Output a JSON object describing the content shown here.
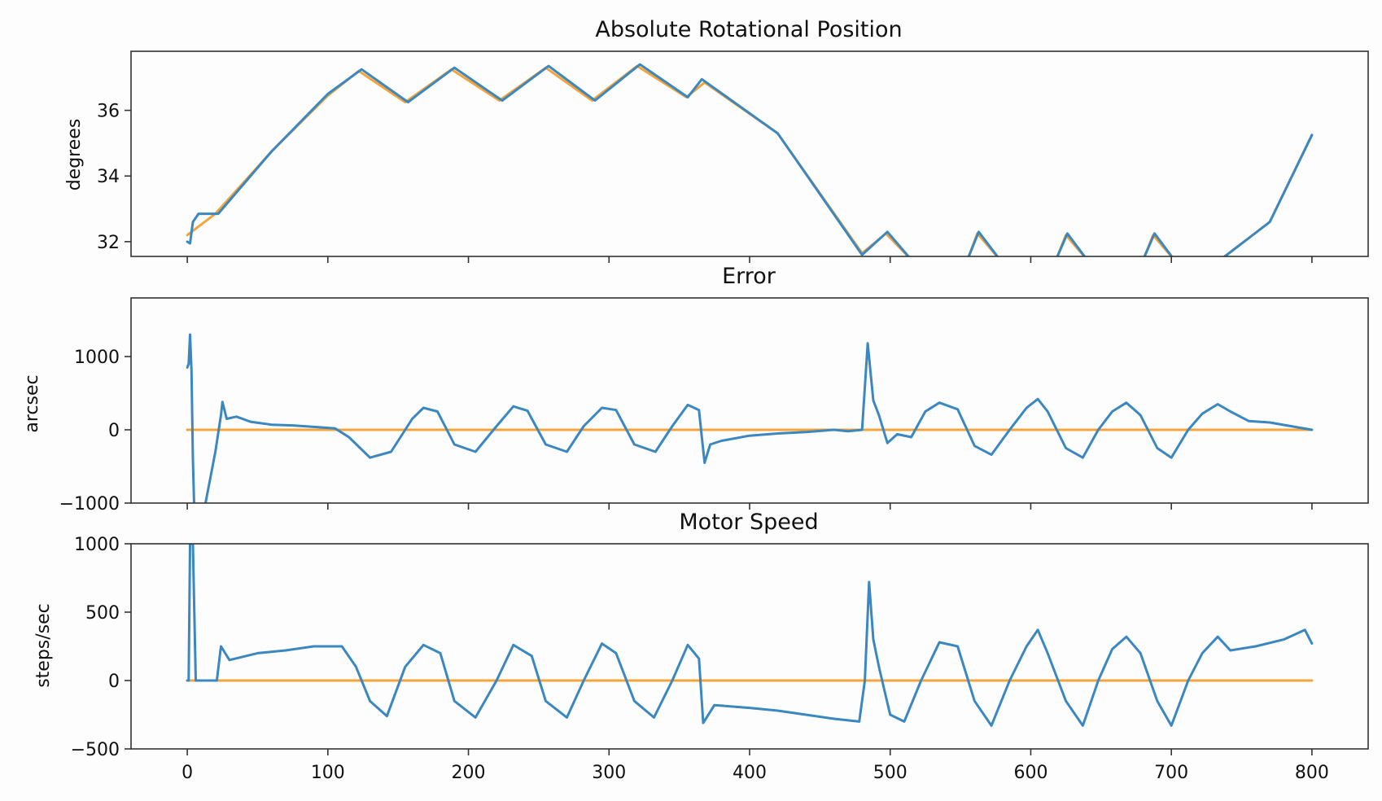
{
  "colors": {
    "measured": "#3b87bf",
    "target": "#f4a43a",
    "frame": "#333333"
  },
  "chart_data": [
    {
      "type": "line",
      "title": "Absolute Rotational Position",
      "xlabel": "",
      "ylabel": "degrees",
      "xlim": [
        -40,
        840
      ],
      "ylim": [
        31.55,
        37.8
      ],
      "yticks": [
        32,
        34,
        36
      ],
      "ytick_labels": [
        "32",
        "34",
        "36"
      ],
      "xticks": [
        0,
        100,
        200,
        300,
        400,
        500,
        600,
        700,
        800
      ],
      "xtick_labels": [],
      "series": [
        {
          "color": "#f4a43a",
          "points": [
            [
              0,
              32.2
            ],
            [
              20,
              32.85
            ],
            [
              60,
              34.75
            ],
            [
              100,
              36.45
            ],
            [
              122,
              37.2
            ],
            [
              155,
              36.25
            ],
            [
              188,
              37.25
            ],
            [
              222,
              36.3
            ],
            [
              255,
              37.3
            ],
            [
              288,
              36.3
            ],
            [
              320,
              37.35
            ],
            [
              355,
              36.4
            ],
            [
              368,
              36.85
            ],
            [
              420,
              35.3
            ],
            [
              480,
              31.65
            ],
            [
              497,
              32.25
            ],
            [
              515,
              31.45
            ],
            [
              555,
              31.45
            ],
            [
              562,
              32.25
            ],
            [
              578,
              31.45
            ],
            [
              618,
              31.45
            ],
            [
              625,
              32.2
            ],
            [
              640,
              31.45
            ],
            [
              680,
              31.45
            ],
            [
              687,
              32.2
            ],
            [
              702,
              31.45
            ],
            [
              735,
              31.45
            ],
            [
              770,
              32.6
            ],
            [
              800,
              35.25
            ]
          ]
        },
        {
          "color": "#3b87bf",
          "points": [
            [
              0,
              32.0
            ],
            [
              2,
              31.95
            ],
            [
              4,
              32.6
            ],
            [
              8,
              32.85
            ],
            [
              22,
              32.85
            ],
            [
              60,
              34.75
            ],
            [
              100,
              36.5
            ],
            [
              124,
              37.25
            ],
            [
              157,
              36.25
            ],
            [
              190,
              37.3
            ],
            [
              224,
              36.3
            ],
            [
              257,
              37.35
            ],
            [
              290,
              36.3
            ],
            [
              322,
              37.4
            ],
            [
              356,
              36.4
            ],
            [
              366,
              36.95
            ],
            [
              420,
              35.3
            ],
            [
              480,
              31.6
            ],
            [
              498,
              32.3
            ],
            [
              515,
              31.45
            ],
            [
              555,
              31.45
            ],
            [
              563,
              32.3
            ],
            [
              578,
              31.45
            ],
            [
              618,
              31.45
            ],
            [
              626,
              32.25
            ],
            [
              640,
              31.45
            ],
            [
              680,
              31.45
            ],
            [
              688,
              32.25
            ],
            [
              702,
              31.45
            ],
            [
              735,
              31.45
            ],
            [
              770,
              32.6
            ],
            [
              800,
              35.25
            ]
          ]
        }
      ]
    },
    {
      "type": "line",
      "title": "Error",
      "xlabel": "",
      "ylabel": "arcsec",
      "xlim": [
        -40,
        840
      ],
      "ylim": [
        -1000,
        1800
      ],
      "yticks": [
        -1000,
        0,
        1000
      ],
      "ytick_labels": [
        "−1000",
        "0",
        "1000"
      ],
      "xticks": [
        0,
        100,
        200,
        300,
        400,
        500,
        600,
        700,
        800
      ],
      "xtick_labels": [],
      "series": [
        {
          "color": "#f4a43a",
          "points": [
            [
              0,
              0
            ],
            [
              800,
              0
            ]
          ]
        },
        {
          "color": "#3b87bf",
          "points": [
            [
              0,
              850
            ],
            [
              1,
              900
            ],
            [
              2,
              1300
            ],
            [
              3,
              800
            ],
            [
              4,
              -400
            ],
            [
              5,
              -1100
            ],
            [
              12,
              -1100
            ],
            [
              16,
              -700
            ],
            [
              20,
              -300
            ],
            [
              24,
              200
            ],
            [
              25,
              380
            ],
            [
              28,
              150
            ],
            [
              35,
              180
            ],
            [
              45,
              110
            ],
            [
              60,
              70
            ],
            [
              75,
              60
            ],
            [
              90,
              40
            ],
            [
              105,
              20
            ],
            [
              115,
              -100
            ],
            [
              130,
              -380
            ],
            [
              145,
              -300
            ],
            [
              160,
              150
            ],
            [
              168,
              300
            ],
            [
              178,
              250
            ],
            [
              190,
              -200
            ],
            [
              205,
              -300
            ],
            [
              220,
              50
            ],
            [
              232,
              320
            ],
            [
              242,
              260
            ],
            [
              255,
              -200
            ],
            [
              270,
              -300
            ],
            [
              282,
              50
            ],
            [
              295,
              300
            ],
            [
              305,
              270
            ],
            [
              318,
              -200
            ],
            [
              333,
              -300
            ],
            [
              345,
              50
            ],
            [
              356,
              340
            ],
            [
              364,
              270
            ],
            [
              366,
              -100
            ],
            [
              368,
              -450
            ],
            [
              372,
              -200
            ],
            [
              380,
              -150
            ],
            [
              400,
              -80
            ],
            [
              420,
              -50
            ],
            [
              440,
              -30
            ],
            [
              460,
              0
            ],
            [
              470,
              -20
            ],
            [
              480,
              0
            ],
            [
              484,
              1180
            ],
            [
              488,
              400
            ],
            [
              492,
              200
            ],
            [
              498,
              -180
            ],
            [
              505,
              -60
            ],
            [
              515,
              -100
            ],
            [
              525,
              250
            ],
            [
              535,
              370
            ],
            [
              548,
              280
            ],
            [
              560,
              -220
            ],
            [
              572,
              -340
            ],
            [
              585,
              0
            ],
            [
              597,
              300
            ],
            [
              605,
              420
            ],
            [
              612,
              250
            ],
            [
              625,
              -250
            ],
            [
              637,
              -380
            ],
            [
              648,
              0
            ],
            [
              658,
              250
            ],
            [
              668,
              370
            ],
            [
              678,
              200
            ],
            [
              690,
              -250
            ],
            [
              700,
              -380
            ],
            [
              712,
              0
            ],
            [
              722,
              220
            ],
            [
              733,
              350
            ],
            [
              742,
              250
            ],
            [
              755,
              120
            ],
            [
              770,
              100
            ],
            [
              785,
              50
            ],
            [
              800,
              0
            ]
          ]
        }
      ]
    },
    {
      "type": "line",
      "title": "Motor Speed",
      "xlabel": "",
      "ylabel": "steps/sec",
      "xlim": [
        -40,
        840
      ],
      "ylim": [
        -500,
        1000
      ],
      "yticks": [
        -500,
        0,
        500,
        1000
      ],
      "ytick_labels": [
        "−500",
        "0",
        "500",
        "1000"
      ],
      "xticks": [
        0,
        100,
        200,
        300,
        400,
        500,
        600,
        700,
        800
      ],
      "xtick_labels": [
        "0",
        "100",
        "200",
        "300",
        "400",
        "500",
        "600",
        "700",
        "800"
      ],
      "series": [
        {
          "color": "#f4a43a",
          "points": [
            [
              0,
              0
            ],
            [
              800,
              0
            ]
          ]
        },
        {
          "color": "#3b87bf",
          "points": [
            [
              0,
              0
            ],
            [
              1,
              0
            ],
            [
              2,
              1000
            ],
            [
              4,
              1000
            ],
            [
              6,
              0
            ],
            [
              21,
              0
            ],
            [
              24,
              250
            ],
            [
              30,
              150
            ],
            [
              50,
              200
            ],
            [
              70,
              220
            ],
            [
              90,
              250
            ],
            [
              110,
              250
            ],
            [
              120,
              100
            ],
            [
              130,
              -150
            ],
            [
              142,
              -260
            ],
            [
              155,
              100
            ],
            [
              168,
              260
            ],
            [
              180,
              200
            ],
            [
              190,
              -150
            ],
            [
              205,
              -270
            ],
            [
              220,
              0
            ],
            [
              232,
              260
            ],
            [
              245,
              180
            ],
            [
              255,
              -150
            ],
            [
              270,
              -270
            ],
            [
              282,
              0
            ],
            [
              295,
              270
            ],
            [
              305,
              200
            ],
            [
              318,
              -150
            ],
            [
              332,
              -270
            ],
            [
              345,
              0
            ],
            [
              356,
              260
            ],
            [
              364,
              160
            ],
            [
              367,
              -310
            ],
            [
              375,
              -180
            ],
            [
              400,
              -200
            ],
            [
              420,
              -220
            ],
            [
              440,
              -250
            ],
            [
              460,
              -280
            ],
            [
              478,
              -300
            ],
            [
              482,
              0
            ],
            [
              485,
              720
            ],
            [
              488,
              300
            ],
            [
              492,
              100
            ],
            [
              500,
              -250
            ],
            [
              510,
              -300
            ],
            [
              522,
              0
            ],
            [
              535,
              280
            ],
            [
              548,
              250
            ],
            [
              560,
              -150
            ],
            [
              572,
              -330
            ],
            [
              585,
              0
            ],
            [
              597,
              250
            ],
            [
              605,
              370
            ],
            [
              612,
              200
            ],
            [
              625,
              -150
            ],
            [
              637,
              -330
            ],
            [
              648,
              0
            ],
            [
              658,
              230
            ],
            [
              668,
              320
            ],
            [
              678,
              200
            ],
            [
              690,
              -150
            ],
            [
              700,
              -330
            ],
            [
              712,
              0
            ],
            [
              722,
              200
            ],
            [
              733,
              320
            ],
            [
              742,
              220
            ],
            [
              760,
              250
            ],
            [
              780,
              300
            ],
            [
              795,
              370
            ],
            [
              800,
              270
            ]
          ]
        }
      ]
    }
  ]
}
